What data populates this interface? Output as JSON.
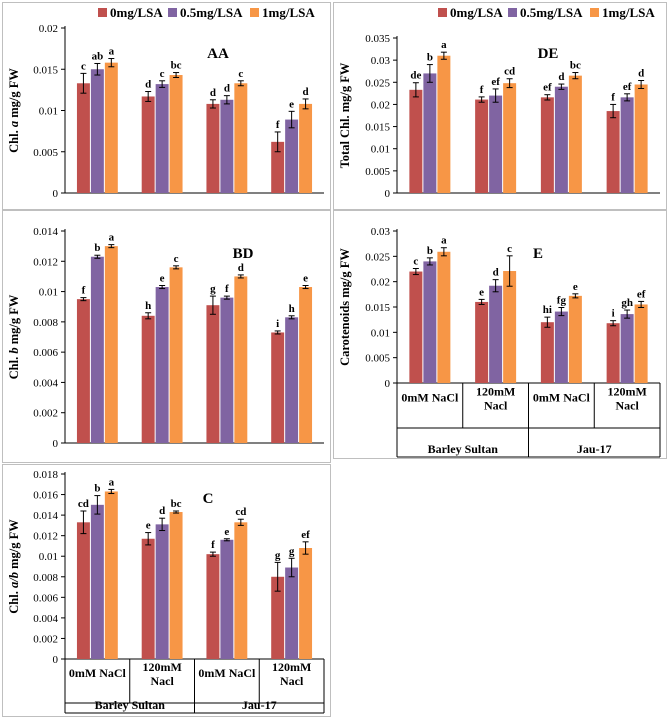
{
  "legend": {
    "items": [
      "0mg/LSA",
      "0.5mg/LSA",
      "1mg/LSA"
    ],
    "colors": [
      "#c0504d",
      "#8064a2",
      "#f79646"
    ]
  },
  "x_axis": {
    "treatments": [
      "0mM NaCl",
      "120mM\nNacl",
      "0mM NaCl",
      "120mM\nNacl"
    ],
    "cultivars": [
      "Barley Sultan",
      "Jau-17"
    ]
  },
  "chart_data": [
    {
      "id": "AA",
      "type": "bar",
      "title": "AA",
      "ylabel": "Chl. a mg/g FW",
      "ylabel_italic": "a",
      "ylim": [
        0,
        0.02
      ],
      "yticks": [
        0,
        0.005,
        0.01,
        0.015,
        0.02
      ],
      "ytick_labels": [
        "0",
        "0.005",
        "0.01",
        "0.015",
        "0.02"
      ],
      "categories": [
        "Barley Sultan 0mM NaCl",
        "Barley Sultan 120mM Nacl",
        "Jau-17 0mM NaCl",
        "Jau-17 120mM Nacl"
      ],
      "series": [
        {
          "name": "0mg/LSA",
          "values": [
            0.0133,
            0.0117,
            0.0108,
            0.0062
          ],
          "errors": [
            0.0012,
            0.0006,
            0.0005,
            0.0012
          ],
          "letters": [
            "c",
            "d",
            "d",
            "f"
          ]
        },
        {
          "name": "0.5mg/LSA",
          "values": [
            0.015,
            0.0132,
            0.0113,
            0.0089
          ],
          "errors": [
            0.0007,
            0.0004,
            0.0005,
            0.001
          ],
          "letters": [
            "ab",
            "c",
            "d",
            "e"
          ]
        },
        {
          "name": "1mg/LSA",
          "values": [
            0.0158,
            0.0143,
            0.0133,
            0.0108
          ],
          "errors": [
            0.0005,
            0.0003,
            0.0003,
            0.0006
          ],
          "letters": [
            "a",
            "bc",
            "c",
            "d"
          ]
        }
      ]
    },
    {
      "id": "DE",
      "type": "bar",
      "title": "DE",
      "ylabel": "Total Chl. mg/g FW",
      "ylim": [
        0,
        0.035
      ],
      "yticks": [
        0,
        0.005,
        0.01,
        0.015,
        0.02,
        0.025,
        0.03,
        0.035
      ],
      "ytick_labels": [
        "0",
        "0.005",
        "0.01",
        "0.015",
        "0.02",
        "0.025",
        "0.03",
        "0.035"
      ],
      "categories": [
        "Barley Sultan 0mM NaCl",
        "Barley Sultan 120mM Nacl",
        "Jau-17 0mM NaCl",
        "Jau-17 120mM Nacl"
      ],
      "series": [
        {
          "name": "0mg/LSA",
          "values": [
            0.0233,
            0.0211,
            0.0216,
            0.0185
          ],
          "errors": [
            0.0016,
            0.0006,
            0.0006,
            0.0015
          ],
          "letters": [
            "de",
            "f",
            "ef",
            "f"
          ]
        },
        {
          "name": "0.5mg/LSA",
          "values": [
            0.027,
            0.022,
            0.024,
            0.0216
          ],
          "errors": [
            0.002,
            0.0015,
            0.0006,
            0.0008
          ],
          "letters": [
            "b",
            "ef",
            "d",
            "ef"
          ]
        },
        {
          "name": "1mg/LSA",
          "values": [
            0.031,
            0.0248,
            0.0265,
            0.0245
          ],
          "errors": [
            0.0008,
            0.001,
            0.0007,
            0.0009
          ],
          "letters": [
            "a",
            "cd",
            "bc",
            "d"
          ]
        }
      ]
    },
    {
      "id": "BD",
      "type": "bar",
      "title": "BD",
      "ylabel": "Chl. b mg/g FW",
      "ylabel_italic": "b",
      "ylim": [
        0,
        0.014
      ],
      "yticks": [
        0,
        0.002,
        0.004,
        0.006,
        0.008,
        0.01,
        0.012,
        0.014
      ],
      "ytick_labels": [
        "0",
        "0.002",
        "0.004",
        "0.006",
        "0.008",
        "0.01",
        "0.012",
        "0.014"
      ],
      "categories": [
        "Barley Sultan 0mM NaCl",
        "Barley Sultan 120mM Nacl",
        "Jau-17 0mM NaCl",
        "Jau-17 120mM Nacl"
      ],
      "series": [
        {
          "name": "0mg/LSA",
          "values": [
            0.0095,
            0.0084,
            0.0091,
            0.0073
          ],
          "errors": [
            0.0001,
            0.0002,
            0.0006,
            0.0001
          ],
          "letters": [
            "f",
            "h",
            "g",
            "i"
          ]
        },
        {
          "name": "0.5mg/LSA",
          "values": [
            0.0123,
            0.0103,
            0.0096,
            0.0083
          ],
          "errors": [
            0.0001,
            0.0001,
            0.0001,
            0.0001
          ],
          "letters": [
            "b",
            "e",
            "f",
            "h"
          ]
        },
        {
          "name": "1mg/LSA",
          "values": [
            0.013,
            0.0116,
            0.011,
            0.0103
          ],
          "errors": [
            0.0001,
            0.0001,
            0.0001,
            0.0001
          ],
          "letters": [
            "a",
            "c",
            "d",
            "e"
          ]
        }
      ]
    },
    {
      "id": "E",
      "type": "bar",
      "title": "E",
      "ylabel": "Carotenoids mg/g FW",
      "ylim": [
        0,
        0.03
      ],
      "yticks": [
        0,
        0.005,
        0.01,
        0.015,
        0.02,
        0.025,
        0.03
      ],
      "ytick_labels": [
        "0",
        "0.005",
        "0.01",
        "0.015",
        "0.02",
        "0.025",
        "0.03"
      ],
      "categories": [
        "Barley Sultan 0mM NaCl",
        "Barley Sultan 120mM Nacl",
        "Jau-17 0mM NaCl",
        "Jau-17 120mM Nacl"
      ],
      "series": [
        {
          "name": "0mg/LSA",
          "values": [
            0.022,
            0.016,
            0.012,
            0.0118
          ],
          "errors": [
            0.0006,
            0.0005,
            0.001,
            0.0005
          ],
          "letters": [
            "c",
            "e",
            "hi",
            "i"
          ]
        },
        {
          "name": "0.5mg/LSA",
          "values": [
            0.024,
            0.0192,
            0.0141,
            0.0136
          ],
          "errors": [
            0.0007,
            0.0012,
            0.0008,
            0.0008
          ],
          "letters": [
            "b",
            "d",
            "fg",
            "gh"
          ]
        },
        {
          "name": "1mg/LSA",
          "values": [
            0.0259,
            0.0221,
            0.0172,
            0.0155
          ],
          "errors": [
            0.0008,
            0.003,
            0.0004,
            0.0006
          ],
          "letters": [
            "a",
            "c",
            "e",
            "ef"
          ]
        }
      ]
    },
    {
      "id": "C",
      "type": "bar",
      "title": "C",
      "ylabel": "Chl. a/b mg/g FW",
      "ylabel_italic": "a/b",
      "ylim": [
        0,
        0.018
      ],
      "yticks": [
        0,
        0.002,
        0.004,
        0.006,
        0.008,
        0.01,
        0.012,
        0.014,
        0.016,
        0.018
      ],
      "ytick_labels": [
        "0",
        "0.002",
        "0.004",
        "0.006",
        "0.008",
        "0.01",
        "0.012",
        "0.014",
        "0.016",
        "0.018"
      ],
      "categories": [
        "Barley Sultan 0mM NaCl",
        "Barley Sultan 120mM Nacl",
        "Jau-17 0mM NaCl",
        "Jau-17 120mM Nacl"
      ],
      "series": [
        {
          "name": "0mg/LSA",
          "values": [
            0.0133,
            0.0117,
            0.0102,
            0.008
          ],
          "errors": [
            0.0011,
            0.0006,
            0.0002,
            0.0014
          ],
          "letters": [
            "cd",
            "e",
            "f",
            "g"
          ]
        },
        {
          "name": "0.5mg/LSA",
          "values": [
            0.015,
            0.0131,
            0.0116,
            0.0089
          ],
          "errors": [
            0.0009,
            0.0006,
            0.0001,
            0.0009
          ],
          "letters": [
            "b",
            "d",
            "e",
            "g"
          ]
        },
        {
          "name": "1mg/LSA",
          "values": [
            0.0163,
            0.0143,
            0.0133,
            0.0108
          ],
          "errors": [
            0.0002,
            0.0001,
            0.0003,
            0.0006
          ],
          "letters": [
            "a",
            "bc",
            "cd",
            "ef"
          ]
        }
      ]
    }
  ]
}
